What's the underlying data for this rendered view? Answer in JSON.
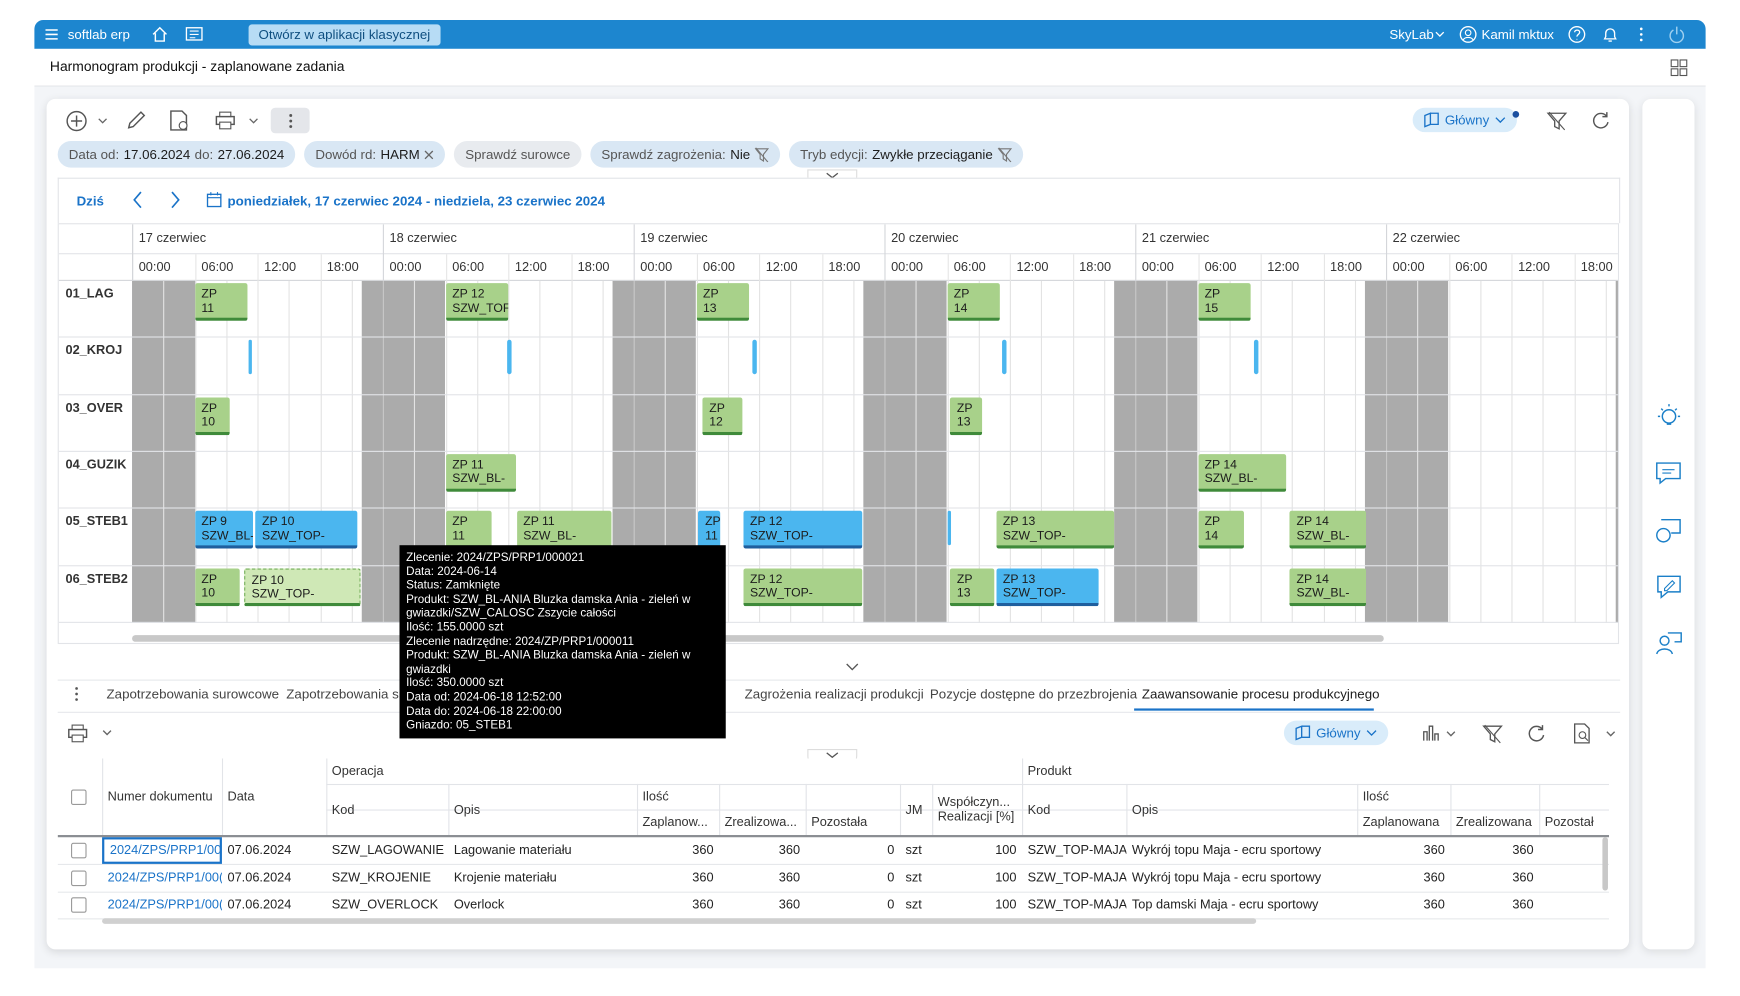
{
  "header": {
    "app_name": "softlab erp",
    "classic_button": "Otwórz w aplikacji klasycznej",
    "company": "SkyLab",
    "user": "Kamil mktux"
  },
  "page_title": "Harmonogram produkcji - zaplanowane zadania",
  "main_view": "Główny",
  "filters": [
    [
      {
        "label": "Data od:",
        "value": "17.06.2024"
      },
      {
        "label": "do:",
        "value": "27.06.2024"
      }
    ],
    [
      {
        "label": "Dowód rd:",
        "value": "HARM"
      }
    ],
    [
      {
        "label": "Sprawdź surowce"
      }
    ],
    [
      {
        "label": "Sprawdź zagrożenia:",
        "value": "Nie"
      }
    ],
    [
      {
        "label": "Tryb edycji:",
        "value": "Zwykłe przeciąganie"
      }
    ]
  ],
  "calendar": {
    "today": "Dziś",
    "range": "poniedziałek, 17 czerwiec 2024 - niedziela, 23 czerwiec 2024",
    "days": [
      "17 czerwiec",
      "18 czerwiec",
      "19 czerwiec",
      "20 czerwiec",
      "21 czerwiec",
      "22 czerwiec"
    ],
    "hours": [
      "00:00",
      "06:00",
      "12:00",
      "18:00"
    ],
    "resources": [
      {
        "name": "01_LAG",
        "tasks": [
          {
            "start": 6,
            "end": 11,
            "color": "#a8d18a",
            "edge": "#3f8a3a",
            "lines": [
              "ZP",
              "11"
            ]
          },
          {
            "start": 30,
            "end": 36,
            "color": "#a8d18a",
            "edge": "#3f8a3a",
            "lines": [
              "ZP 12",
              "SZW_TOF"
            ]
          },
          {
            "start": 54,
            "end": 59,
            "color": "#a8d18a",
            "edge": "#3f8a3a",
            "lines": [
              "ZP",
              "13"
            ]
          },
          {
            "start": 78,
            "end": 83,
            "color": "#a8d18a",
            "edge": "#3f8a3a",
            "lines": [
              "ZP",
              "14"
            ]
          },
          {
            "start": 102,
            "end": 107,
            "color": "#a8d18a",
            "edge": "#3f8a3a",
            "lines": [
              "ZP",
              "15"
            ]
          }
        ]
      },
      {
        "name": "02_KROJ",
        "tasks": [
          {
            "start": 11.1,
            "end": 11.5,
            "color": "#4bb6ef",
            "edge": "#4bb6ef"
          },
          {
            "start": 35.9,
            "end": 36.3,
            "color": "#4bb6ef",
            "edge": "#4bb6ef"
          },
          {
            "start": 59.4,
            "end": 59.8,
            "color": "#4bb6ef",
            "edge": "#4bb6ef"
          },
          {
            "start": 83.3,
            "end": 83.7,
            "color": "#4bb6ef",
            "edge": "#4bb6ef"
          },
          {
            "start": 107.4,
            "end": 107.8,
            "color": "#4bb6ef",
            "edge": "#4bb6ef"
          }
        ]
      },
      {
        "name": "03_OVER",
        "tasks": [
          {
            "start": 6,
            "end": 9.3,
            "color": "#a8d18a",
            "edge": "#3f8a3a",
            "lines": [
              "ZP",
              "10"
            ]
          },
          {
            "start": 54.6,
            "end": 58.4,
            "color": "#a8d18a",
            "edge": "#3f8a3a",
            "lines": [
              "ZP",
              "12"
            ]
          },
          {
            "start": 78.3,
            "end": 81.3,
            "color": "#a8d18a",
            "edge": "#3f8a3a",
            "lines": [
              "ZP",
              "13"
            ]
          }
        ]
      },
      {
        "name": "04_GUZIK",
        "tasks": [
          {
            "start": 30,
            "end": 36.7,
            "color": "#a8d18a",
            "edge": "#3f8a3a",
            "lines": [
              "ZP 11",
              "SZW_BL-"
            ]
          },
          {
            "start": 102,
            "end": 110.4,
            "color": "#a8d18a",
            "edge": "#3f8a3a",
            "lines": [
              "ZP 14",
              "SZW_BL-"
            ]
          }
        ]
      },
      {
        "name": "05_STEB1",
        "tasks": [
          {
            "start": 6,
            "end": 11.6,
            "color": "#4bb6ef",
            "edge": "#1f5f9e",
            "lines": [
              "ZP 9",
              "SZW_BL-"
            ]
          },
          {
            "start": 11.8,
            "end": 21.6,
            "color": "#4bb6ef",
            "edge": "#1f5f9e",
            "lines": [
              "ZP 10",
              "SZW_TOP-"
            ]
          },
          {
            "start": 30,
            "end": 34.4,
            "color": "#a8d18a",
            "edge": "#3f8a3a",
            "lines": [
              "ZP",
              "11"
            ]
          },
          {
            "start": 36.8,
            "end": 45.9,
            "color": "#a8d18a",
            "edge": "#3f8a3a",
            "lines": [
              "ZP 11",
              "SZW_BL-"
            ]
          },
          {
            "start": 54.2,
            "end": 56.3,
            "color": "#4bb6ef",
            "edge": "#1f5f9e",
            "lines": [
              "ZP",
              "11"
            ]
          },
          {
            "start": 58.5,
            "end": 69.9,
            "color": "#4bb6ef",
            "edge": "#1f5f9e",
            "lines": [
              "ZP 12",
              "SZW_TOP-"
            ]
          },
          {
            "start": 78,
            "end": 78.4,
            "color": "#4bb6ef",
            "edge": "#1f5f9e"
          },
          {
            "start": 82.7,
            "end": 94,
            "color": "#a8d18a",
            "edge": "#3f8a3a",
            "lines": [
              "ZP 13",
              "SZW_TOP-"
            ]
          },
          {
            "start": 102,
            "end": 106.4,
            "color": "#a8d18a",
            "edge": "#3f8a3a",
            "lines": [
              "ZP",
              "14"
            ]
          },
          {
            "start": 110.8,
            "end": 118.1,
            "color": "#a8d18a",
            "edge": "#3f8a3a",
            "lines": [
              "ZP 14",
              "SZW_BL-"
            ]
          }
        ]
      },
      {
        "name": "06_STEB2",
        "tasks": [
          {
            "start": 6,
            "end": 10.3,
            "color": "#a8d18a",
            "edge": "#3f8a3a",
            "lines": [
              "ZP",
              "10"
            ]
          },
          {
            "start": 10.7,
            "end": 21.9,
            "color": "#cfe8b6",
            "edge": "#3f8a3a",
            "selected": true,
            "lines": [
              "ZP 10",
              "SZW_TOP-"
            ]
          },
          {
            "start": 58.5,
            "end": 69.9,
            "color": "#a8d18a",
            "edge": "#3f8a3a",
            "lines": [
              "ZP 12",
              "SZW_TOP-"
            ]
          },
          {
            "start": 78.3,
            "end": 82.5,
            "color": "#a8d18a",
            "edge": "#3f8a3a",
            "lines": [
              "ZP",
              "13"
            ]
          },
          {
            "start": 82.7,
            "end": 92.5,
            "color": "#4bb6ef",
            "edge": "#1f5f9e",
            "lines": [
              "ZP 13",
              "SZW_TOP-"
            ]
          },
          {
            "start": 110.8,
            "end": 118.1,
            "color": "#a8d18a",
            "edge": "#3f8a3a",
            "lines": [
              "ZP 14",
              "SZW_BL-"
            ]
          }
        ]
      }
    ]
  },
  "tooltip": [
    "Zlecenie: 2024/ZPS/PRP1/000021",
    "Data: 2024-06-14",
    "Status: Zamknięte",
    "Produkt: SZW_BL-ANIA Bluzka damska Ania - zieleń w gwiazdki/SZW_CALOSC Zszycie całości",
    "Ilość: 155.0000 szt",
    "Zlecenie nadrzędne: 2024/ZP/PRP1/000011",
    "Produkt: SZW_BL-ANIA Bluzka damska Ania - zieleń w gwiazdki",
    "Ilość: 350.0000 szt",
    "Data od: 2024-06-18 12:52:00",
    "Data do: 2024-06-18 22:00:00",
    "Gniazdo: 05_STEB1"
  ],
  "tabs": [
    "Zapotrzebowania surowcowe",
    "Zapotrzebowania su",
    "Zagrożenia realizacji produkcji",
    "Pozycje dostępne do przezbrojenia",
    "Zaawansowanie procesu produkcyjnego"
  ],
  "bottom_view": "Główny",
  "table": {
    "header": {
      "number": "Numer dokumentu",
      "date": "Data",
      "operation": "Operacja",
      "op_code": "Kod",
      "op_desc": "Opis",
      "op_qty": "Ilość",
      "planned": "Zaplanow...",
      "done": "Zrealizowa...",
      "left": "Pozostała",
      "unit": "JM",
      "ratio": [
        "Współczyn...",
        "Realizacji [%]"
      ],
      "product": "Produkt",
      "prod_code": "Kod",
      "prod_desc": "Opis",
      "prod_qty": "Ilość",
      "prod_planned": "Zaplanowana",
      "prod_done": "Zrealizowana",
      "prod_left": "Pozostał"
    },
    "rows": [
      [
        "2024/ZPS/PRP1/00",
        "07.06.2024",
        "SZW_LAGOWANIE",
        "Lagowanie materiału",
        360,
        360,
        0,
        "szt",
        100,
        "SZW_TOP-MAJA-I",
        "Wykrój topu Maja - ecru sportowy",
        360,
        360
      ],
      [
        "2024/ZPS/PRP1/00(",
        "07.06.2024",
        "SZW_KROJENIE",
        "Krojenie materiału",
        360,
        360,
        0,
        "szt",
        100,
        "SZW_TOP-MAJA-I",
        "Wykrój topu Maja - ecru sportowy",
        360,
        360
      ],
      [
        "2024/ZPS/PRP1/00(",
        "07.06.2024",
        "SZW_OVERLOCK",
        "Overlock",
        360,
        360,
        0,
        "szt",
        100,
        "SZW_TOP-MAJA",
        "Top damski Maja - ecru sportowy",
        360,
        360
      ]
    ]
  }
}
